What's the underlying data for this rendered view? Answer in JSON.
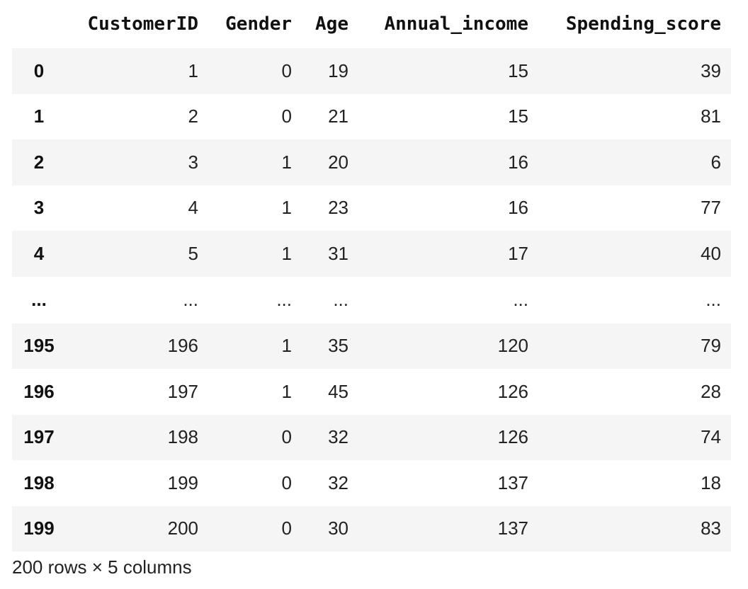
{
  "dataframe": {
    "columns": {
      "index": "",
      "customer_id": "CustomerID",
      "gender": "Gender",
      "age": "Age",
      "annual_income": "Annual_income",
      "spending_score": "Spending_score"
    },
    "rows": [
      {
        "index": "0",
        "customer_id": "1",
        "gender": "0",
        "age": "19",
        "annual_income": "15",
        "spending_score": "39"
      },
      {
        "index": "1",
        "customer_id": "2",
        "gender": "0",
        "age": "21",
        "annual_income": "15",
        "spending_score": "81"
      },
      {
        "index": "2",
        "customer_id": "3",
        "gender": "1",
        "age": "20",
        "annual_income": "16",
        "spending_score": "6"
      },
      {
        "index": "3",
        "customer_id": "4",
        "gender": "1",
        "age": "23",
        "annual_income": "16",
        "spending_score": "77"
      },
      {
        "index": "4",
        "customer_id": "5",
        "gender": "1",
        "age": "31",
        "annual_income": "17",
        "spending_score": "40"
      },
      {
        "index": "...",
        "customer_id": "...",
        "gender": "...",
        "age": "...",
        "annual_income": "...",
        "spending_score": "..."
      },
      {
        "index": "195",
        "customer_id": "196",
        "gender": "1",
        "age": "35",
        "annual_income": "120",
        "spending_score": "79"
      },
      {
        "index": "196",
        "customer_id": "197",
        "gender": "1",
        "age": "45",
        "annual_income": "126",
        "spending_score": "28"
      },
      {
        "index": "197",
        "customer_id": "198",
        "gender": "0",
        "age": "32",
        "annual_income": "126",
        "spending_score": "74"
      },
      {
        "index": "198",
        "customer_id": "199",
        "gender": "0",
        "age": "32",
        "annual_income": "137",
        "spending_score": "18"
      },
      {
        "index": "199",
        "customer_id": "200",
        "gender": "0",
        "age": "30",
        "annual_income": "137",
        "spending_score": "83"
      }
    ],
    "shape_label": "200 rows × 5 columns"
  },
  "colors": {
    "stripe": "#f5f5f5",
    "text": "#111111"
  }
}
